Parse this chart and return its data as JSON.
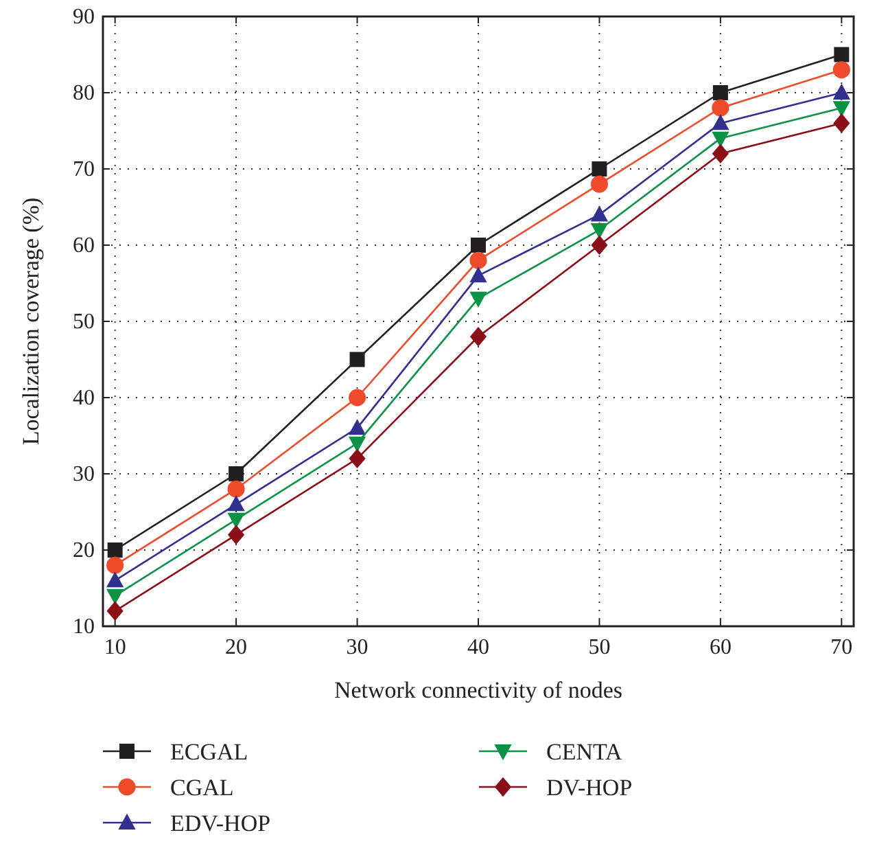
{
  "chart_data": {
    "type": "line",
    "xlabel": "Network connectivity of nodes",
    "ylabel": "Localization coverage (%)",
    "x": [
      10,
      20,
      30,
      40,
      50,
      60,
      70
    ],
    "xlim": [
      9,
      71
    ],
    "xticks": [
      10,
      20,
      30,
      40,
      50,
      60,
      70
    ],
    "ylim": [
      10,
      90
    ],
    "yticks": [
      10,
      20,
      30,
      40,
      50,
      60,
      70,
      80,
      90
    ],
    "grid": true,
    "legend": "bottom",
    "series": [
      {
        "name": "ECGAL",
        "color": "#231f20",
        "marker": "square",
        "values": [
          20,
          30,
          45,
          60,
          70,
          80,
          85
        ]
      },
      {
        "name": "CGAL",
        "color": "#ef4b2b",
        "marker": "circle",
        "values": [
          18,
          28,
          40,
          58,
          68,
          78,
          83
        ]
      },
      {
        "name": "EDV-HOP",
        "color": "#32308f",
        "marker": "triangle",
        "values": [
          16,
          26,
          36,
          56,
          64,
          76,
          80
        ]
      },
      {
        "name": "CENTA",
        "color": "#0a9347",
        "marker": "triangle-down",
        "values": [
          14,
          24,
          34,
          53,
          62,
          74,
          78
        ]
      },
      {
        "name": "DV-HOP",
        "color": "#8b0e16",
        "marker": "diamond",
        "values": [
          12,
          22,
          32,
          48,
          60,
          72,
          76
        ]
      }
    ]
  }
}
